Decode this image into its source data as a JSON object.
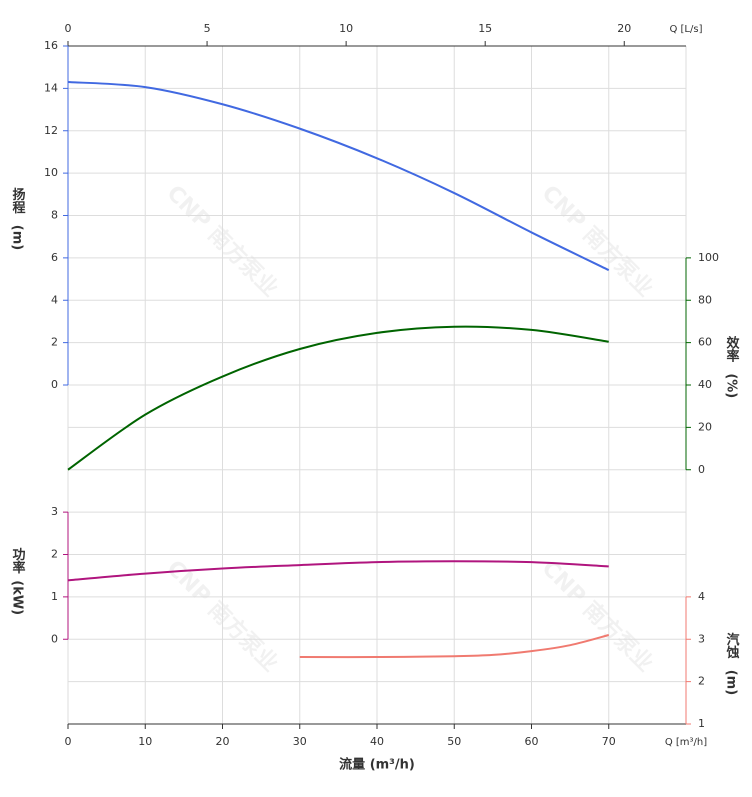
{
  "chart_data": {
    "type": "line",
    "xlabel": "流量 (m³/h)",
    "xunit": "Q [m³/h]",
    "x2unit": "Q [L/s]",
    "watermark": "CNP 南方泵业",
    "xlim": [
      0,
      80
    ],
    "xticks": [
      0,
      10,
      20,
      30,
      40,
      50,
      60,
      70
    ],
    "x2lim": [
      0,
      22.22
    ],
    "x2ticks": [
      0,
      5,
      10,
      15,
      20
    ],
    "y_axes": {
      "head": {
        "label": "扬程",
        "unit": "(m)",
        "side": "left",
        "color": "#4169e1",
        "ylim": [
          -16,
          16
        ],
        "yticks": [
          0,
          2,
          4,
          6,
          8,
          10,
          12,
          14,
          16
        ]
      },
      "eff": {
        "label": "效率",
        "unit": "(%)",
        "side": "right",
        "color": "#006400",
        "ylim": [
          -120,
          200
        ],
        "yticks": [
          0,
          20,
          40,
          60,
          80,
          100
        ]
      },
      "power": {
        "label": "功率",
        "unit": "(kW)",
        "side": "left",
        "color": "#b0157e",
        "ylim": [
          -2,
          14
        ],
        "yticks": [
          0,
          1,
          2,
          3
        ]
      },
      "npsh": {
        "label": "汽蚀",
        "unit": "(m)",
        "side": "right",
        "color": "#f07a70",
        "ylim": [
          1,
          17
        ],
        "yticks": [
          1,
          2,
          3,
          4
        ]
      }
    },
    "series": [
      {
        "axis": "head",
        "color": "#4169e1",
        "x": [
          0,
          10,
          20,
          30,
          40,
          50,
          60,
          70
        ],
        "values": [
          14.3,
          14.06,
          13.25,
          12.1,
          10.7,
          9.06,
          7.2,
          5.42
        ]
      },
      {
        "axis": "eff",
        "color": "#006400",
        "x": [
          0,
          10,
          20,
          30,
          40,
          50,
          60,
          70
        ],
        "values": [
          0,
          26,
          44,
          57,
          64.6,
          67.5,
          66,
          60.4
        ]
      },
      {
        "axis": "power",
        "color": "#b0157e",
        "x": [
          0,
          10,
          20,
          30,
          40,
          50,
          60,
          70
        ],
        "values": [
          1.39,
          1.55,
          1.67,
          1.75,
          1.82,
          1.84,
          1.82,
          1.72
        ]
      },
      {
        "axis": "npsh",
        "color": "#f07a70",
        "x": [
          30,
          40,
          50,
          55,
          60,
          65,
          70
        ],
        "values": [
          2.58,
          2.58,
          2.6,
          2.63,
          2.72,
          2.86,
          3.1
        ]
      }
    ]
  }
}
